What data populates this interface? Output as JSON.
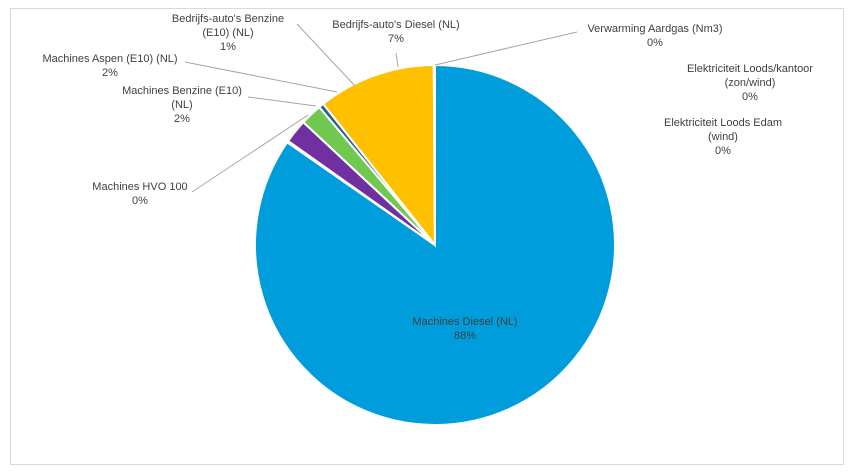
{
  "chart_data": {
    "type": "pie",
    "slices": [
      {
        "label": "Machines Diesel (NL)",
        "value": 88,
        "pct_label": "88%",
        "color": "#009ddc"
      },
      {
        "label": "Machines HVO 100",
        "value": 0,
        "pct_label": "0%",
        "color": "#ed7d31"
      },
      {
        "label": "Machines Benzine (E10) (NL)",
        "value": 2,
        "pct_label": "2%",
        "color": "#7030a0"
      },
      {
        "label": "Machines Aspen (E10) (NL)",
        "value": 2,
        "pct_label": "2%",
        "color": "#70c850"
      },
      {
        "label": "Bedrijfs-auto's Benzine (E10) (NL)",
        "value": 1,
        "pct_label": "1%",
        "color": "#2c5f8a"
      },
      {
        "label": "Bedrijfs-auto's Diesel (NL)",
        "value": 7,
        "pct_label": "7%",
        "color": "#ffc000"
      },
      {
        "label": "Verwarming Aardgas (Nm3)",
        "value": 0,
        "pct_label": "0%",
        "color": "#a5a5a5"
      },
      {
        "label": "Elektriciteit Loods/kantoor (zon/wind)",
        "value": 0,
        "pct_label": "0%",
        "color": "#5b9bd5"
      },
      {
        "label": "Elektriciteit Loods Edam (wind)",
        "value": 0,
        "pct_label": "0%",
        "color": "#264478"
      }
    ],
    "legend": "none",
    "start_angle_deg": 0,
    "direction": "clockwise"
  }
}
